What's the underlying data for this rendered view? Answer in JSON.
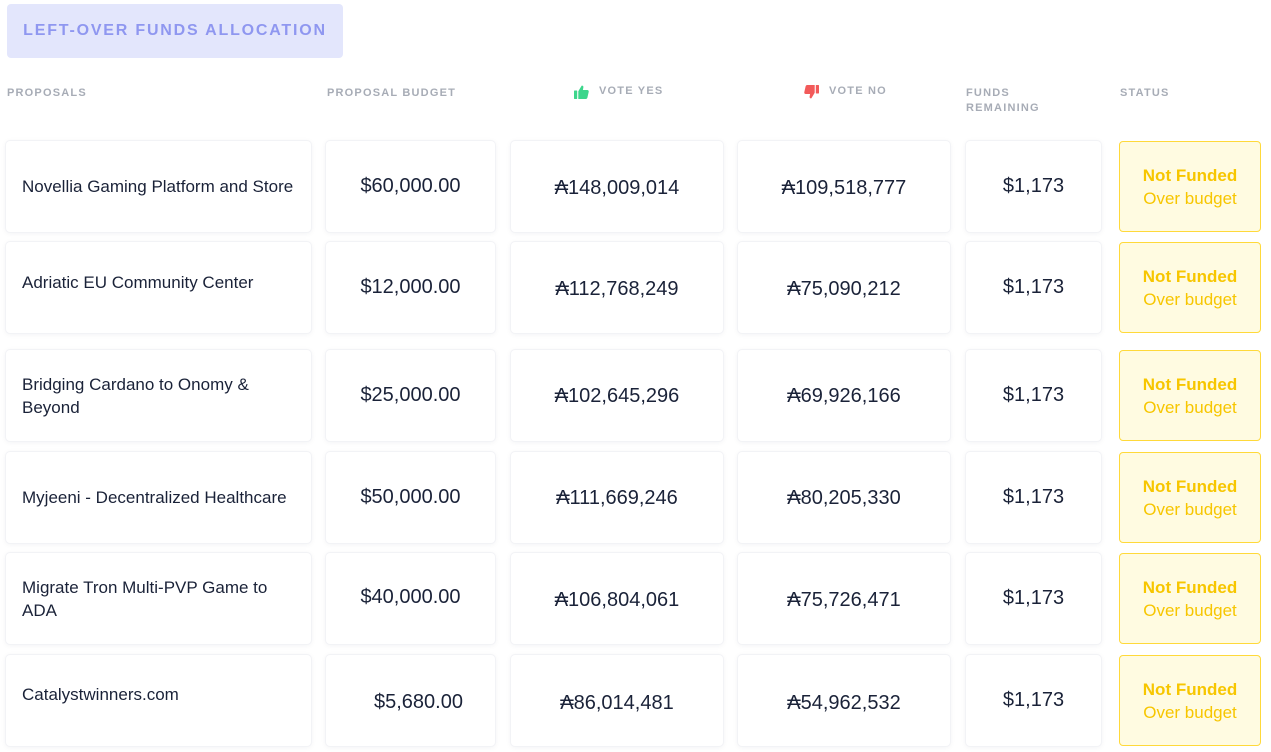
{
  "tab": {
    "label": "LEFT-OVER FUNDS ALLOCATION"
  },
  "columns": {
    "proposals": "PROPOSALS",
    "budget": "PROPOSAL BUDGET",
    "vote_yes": "VOTE YES",
    "vote_no": "VOTE NO",
    "funds_line1": "FUNDS",
    "funds_line2": "REMAINING",
    "status": "STATUS"
  },
  "colors": {
    "tab_bg": "#e3e6fc",
    "tab_text": "#8f97f0",
    "thumb_up": "#3dd68c",
    "thumb_down": "#f25a5a",
    "status_text": "#f7c600",
    "status_border": "#ffd93a",
    "status_bg": "#fffbe1"
  },
  "icons": {
    "vote_yes": "thumbs-up-icon",
    "vote_no": "thumbs-down-icon"
  },
  "rows": [
    {
      "name": "Novellia Gaming Platform and Store",
      "budget": "$60,000.00",
      "yes": "₳148,009,014",
      "no": "₳109,518,777",
      "funds": "$1,173",
      "status": "Not Funded",
      "status_sub": "Over budget"
    },
    {
      "name": "Adriatic EU Community Center",
      "budget": "$12,000.00",
      "yes": "₳112,768,249",
      "no": "₳75,090,212",
      "funds": "$1,173",
      "status": "Not Funded",
      "status_sub": "Over budget"
    },
    {
      "name": "Bridging Cardano to Onomy & Beyond",
      "budget": "$25,000.00",
      "yes": "₳102,645,296",
      "no": "₳69,926,166",
      "funds": "$1,173",
      "status": "Not Funded",
      "status_sub": "Over budget"
    },
    {
      "name": "Myjeeni - Decentralized Healthcare",
      "budget": "$50,000.00",
      "yes": "₳111,669,246",
      "no": "₳80,205,330",
      "funds": "$1,173",
      "status": "Not Funded",
      "status_sub": "Over budget"
    },
    {
      "name": "Migrate Tron Multi-PVP Game to ADA",
      "budget": "$40,000.00",
      "yes": "₳106,804,061",
      "no": "₳75,726,471",
      "funds": "$1,173",
      "status": "Not Funded",
      "status_sub": "Over budget"
    },
    {
      "name": "Catalystwinners.com",
      "budget": "$5,680.00",
      "yes": "₳86,014,481",
      "no": "₳54,962,532",
      "funds": "$1,173",
      "status": "Not Funded",
      "status_sub": "Over budget"
    }
  ]
}
